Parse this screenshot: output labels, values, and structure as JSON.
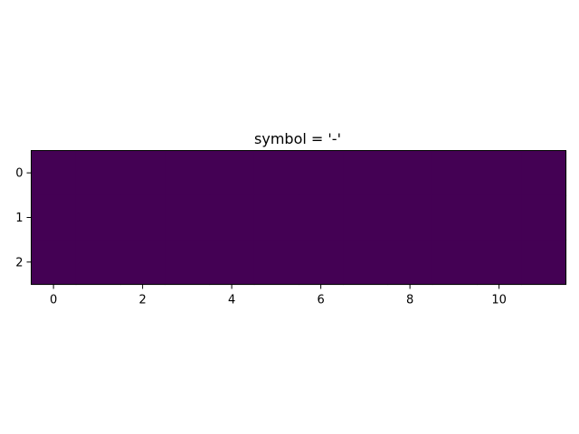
{
  "chart_data": {
    "type": "heatmap",
    "title": "symbol = '-'",
    "xlabel": "",
    "ylabel": "",
    "rows": 3,
    "cols": 12,
    "values": [
      [
        0,
        0,
        0,
        0,
        0,
        0,
        0,
        0,
        0,
        0,
        0,
        0
      ],
      [
        0,
        0,
        0,
        0,
        0,
        0,
        0,
        0,
        0,
        0,
        0,
        0
      ],
      [
        0,
        0,
        0,
        0,
        0,
        0,
        0,
        0,
        0,
        0,
        0,
        0
      ]
    ],
    "xlim": [
      -0.5,
      11.5
    ],
    "ylim": [
      2.5,
      -0.5
    ],
    "x_ticks": [
      0,
      2,
      4,
      6,
      8,
      10
    ],
    "y_ticks": [
      0,
      1,
      2
    ],
    "x_tick_labels": [
      "0",
      "2",
      "4",
      "6",
      "8",
      "10"
    ],
    "y_tick_labels": [
      "0",
      "1",
      "2"
    ],
    "colormap": "viridis",
    "cell_color": "#440154",
    "grid": false,
    "legend": "none"
  }
}
